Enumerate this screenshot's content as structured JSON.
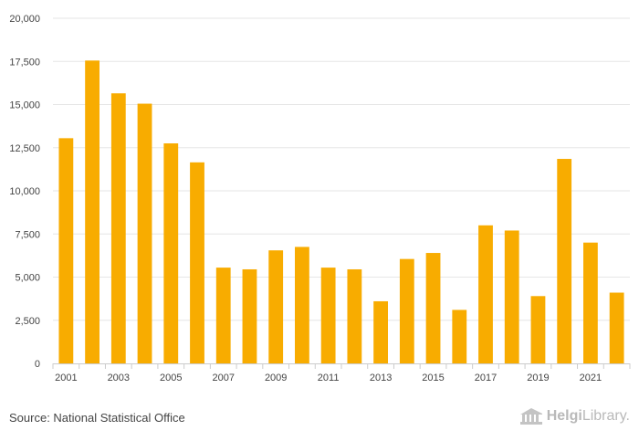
{
  "chart_data": {
    "type": "bar",
    "categories": [
      "2001",
      "2002",
      "2003",
      "2004",
      "2005",
      "2006",
      "2007",
      "2008",
      "2009",
      "2010",
      "2011",
      "2012",
      "2013",
      "2014",
      "2015",
      "2016",
      "2017",
      "2018",
      "2019",
      "2020",
      "2021",
      "2022"
    ],
    "values": [
      13050,
      17550,
      15650,
      15050,
      12750,
      11650,
      5550,
      5450,
      6550,
      6750,
      5550,
      5450,
      3600,
      6050,
      6400,
      3100,
      8000,
      7700,
      3900,
      11850,
      7000,
      4100
    ],
    "y_ticks": [
      "0",
      "2,500",
      "5,000",
      "7,500",
      "10,000",
      "12,500",
      "15,000",
      "17,500",
      "20,000"
    ],
    "x_tick_labels": [
      "2001",
      "2003",
      "2005",
      "2007",
      "2009",
      "2011",
      "2013",
      "2015",
      "2017",
      "2019",
      "2021"
    ],
    "ylim": [
      0,
      20000
    ],
    "grid": true,
    "bar_color": "#f8ac00",
    "title": "",
    "xlabel": "",
    "ylabel": ""
  },
  "footer": {
    "source": "Source: National Statistical Office",
    "logo_part1": "Helgi",
    "logo_part2": "Library."
  }
}
